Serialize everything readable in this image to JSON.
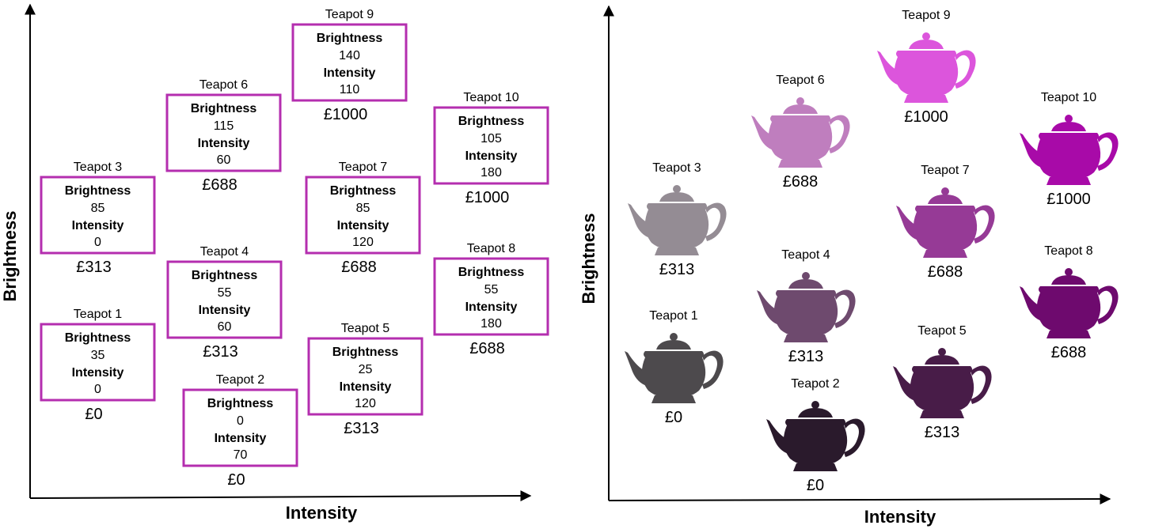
{
  "axes": {
    "x_label": "Intensity",
    "y_label": "Brightness"
  },
  "field_labels": {
    "brightness": "Brightness",
    "intensity": "Intensity"
  },
  "teapots": [
    {
      "name": "Teapot 1",
      "brightness": "35",
      "intensity": "0",
      "price": "£0",
      "color": "#4d4a4d"
    },
    {
      "name": "Teapot 2",
      "brightness": "0",
      "intensity": "70",
      "price": "£0",
      "color": "#2a1a2c"
    },
    {
      "name": "Teapot 3",
      "brightness": "85",
      "intensity": "0",
      "price": "£313",
      "color": "#948c94"
    },
    {
      "name": "Teapot 4",
      "brightness": "55",
      "intensity": "60",
      "price": "£313",
      "color": "#6e4a6e"
    },
    {
      "name": "Teapot 5",
      "brightness": "25",
      "intensity": "120",
      "price": "£313",
      "color": "#481c48"
    },
    {
      "name": "Teapot 6",
      "brightness": "115",
      "intensity": "60",
      "price": "£688",
      "color": "#bf7ebe"
    },
    {
      "name": "Teapot 7",
      "brightness": "85",
      "intensity": "120",
      "price": "£688",
      "color": "#963a96"
    },
    {
      "name": "Teapot 8",
      "brightness": "55",
      "intensity": "180",
      "price": "£688",
      "color": "#6e0a6e"
    },
    {
      "name": "Teapot 9",
      "brightness": "140",
      "intensity": "110",
      "price": "£1000",
      "color": "#dc55dc"
    },
    {
      "name": "Teapot 10",
      "brightness": "105",
      "intensity": "180",
      "price": "£1000",
      "color": "#a80aa8"
    }
  ],
  "box_color": "#b42eaf"
}
